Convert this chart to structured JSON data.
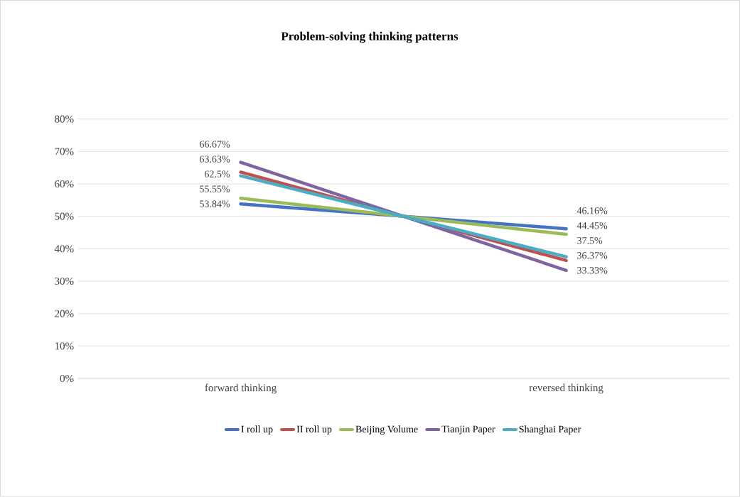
{
  "chart_data": {
    "type": "line",
    "title": "Problem-solving thinking patterns",
    "categories": [
      "forward thinking",
      "reversed thinking"
    ],
    "series": [
      {
        "name": "I roll up",
        "color": "#4472c4",
        "values": [
          53.84,
          46.16
        ],
        "value_labels": [
          "53.84%",
          "46.16%"
        ]
      },
      {
        "name": "II roll up",
        "color": "#c0504d",
        "values": [
          63.63,
          36.37
        ],
        "value_labels": [
          "63.63%",
          "36.37%"
        ]
      },
      {
        "name": "Beijing Volume",
        "color": "#9bbb59",
        "values": [
          55.55,
          44.45
        ],
        "value_labels": [
          "55.55%",
          "44.45%"
        ]
      },
      {
        "name": "Tianjin Paper",
        "color": "#8064a2",
        "values": [
          66.67,
          33.33
        ],
        "value_labels": [
          "66.67%",
          "33.33%"
        ]
      },
      {
        "name": "Shanghai Paper",
        "color": "#4bacc6",
        "values": [
          62.5,
          37.5
        ],
        "value_labels": [
          "62.5%",
          "37.5%"
        ]
      }
    ],
    "ylim": [
      0,
      80
    ],
    "yticks": [
      {
        "value": 0,
        "label": "0%"
      },
      {
        "value": 10,
        "label": "10%"
      },
      {
        "value": 20,
        "label": "20%"
      },
      {
        "value": 30,
        "label": "30%"
      },
      {
        "value": 40,
        "label": "40%"
      },
      {
        "value": 50,
        "label": "50%"
      },
      {
        "value": 60,
        "label": "60%"
      },
      {
        "value": 70,
        "label": "70%"
      },
      {
        "value": 80,
        "label": "80%"
      }
    ],
    "grid": "y",
    "legend": "bottom",
    "line_style": "solid"
  }
}
